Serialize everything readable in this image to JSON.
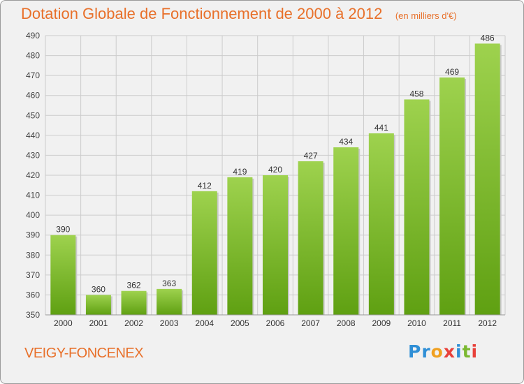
{
  "title": "Dotation Globale de Fonctionnement de 2000 à 2012",
  "unit_note": "(en milliers d'€)",
  "commune": "VEIGY-FONCENEX",
  "logo": {
    "letters": [
      "P",
      "r",
      "o",
      "x",
      "i",
      "t",
      "i"
    ],
    "colors": [
      "#2f8fd6",
      "#2f8fd6",
      "#f0a020",
      "#e8403a",
      "#2f8fd6",
      "#7ab830",
      "#e8403a"
    ]
  },
  "colors": {
    "title": "#e8702a",
    "bar_top": "#9ed24e",
    "bar_bottom": "#5fa012",
    "grid": "#cccccc",
    "background": "#f1f1f1"
  },
  "chart_data": {
    "type": "bar",
    "categories": [
      "2000",
      "2001",
      "2002",
      "2003",
      "2004",
      "2005",
      "2006",
      "2007",
      "2008",
      "2009",
      "2010",
      "2011",
      "2012"
    ],
    "values": [
      390,
      360,
      362,
      363,
      412,
      419,
      420,
      427,
      434,
      441,
      458,
      469,
      486
    ],
    "ylim": [
      350,
      490
    ],
    "yticks": [
      350,
      360,
      370,
      380,
      390,
      400,
      410,
      420,
      430,
      440,
      450,
      460,
      470,
      480,
      490
    ],
    "grid": true,
    "data_labels": true
  }
}
